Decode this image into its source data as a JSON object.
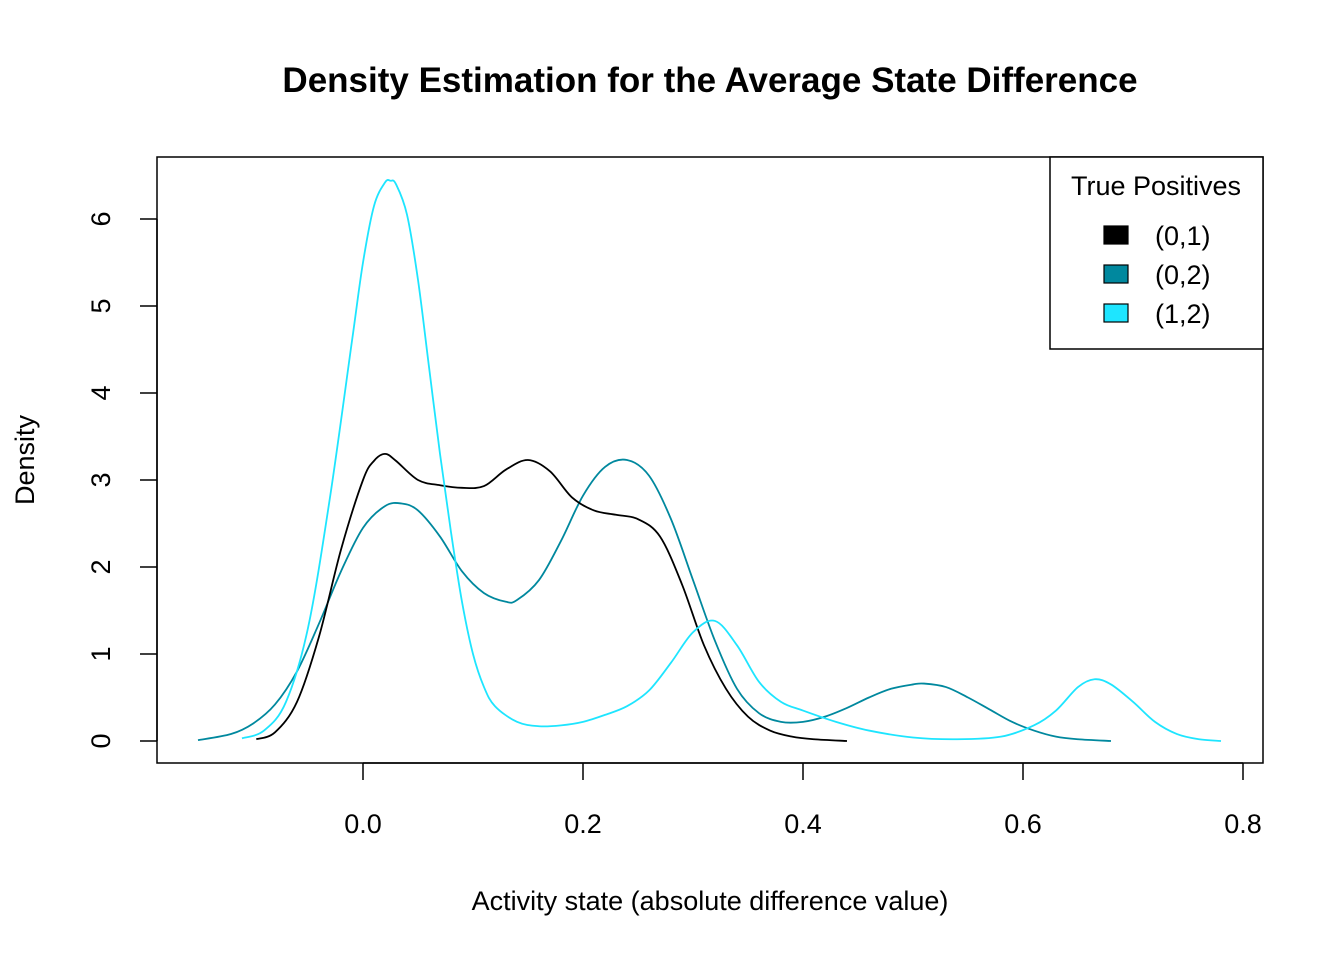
{
  "chart_data": {
    "type": "line",
    "title": "Density Estimation for the Average State Difference",
    "xlabel": "Activity state (absolute difference value)",
    "ylabel": "Density",
    "xlim": [
      -0.15,
      0.78
    ],
    "ylim": [
      0,
      6.5
    ],
    "x_ticks": [
      0.0,
      0.2,
      0.4,
      0.6,
      0.8
    ],
    "x_tick_labels": [
      "0.0",
      "0.2",
      "0.4",
      "0.6",
      "0.8"
    ],
    "y_ticks": [
      0,
      1,
      2,
      3,
      4,
      5,
      6
    ],
    "y_tick_labels": [
      "0",
      "1",
      "2",
      "3",
      "4",
      "5",
      "6"
    ],
    "grid": false,
    "legend": {
      "title": "True Positives",
      "position": "top-right"
    },
    "series": [
      {
        "name": "(0,1)",
        "color": "#000000",
        "x": [
          -0.097,
          -0.08,
          -0.06,
          -0.04,
          -0.02,
          0.0,
          0.01,
          0.02,
          0.03,
          0.05,
          0.07,
          0.09,
          0.11,
          0.13,
          0.15,
          0.17,
          0.19,
          0.21,
          0.23,
          0.25,
          0.27,
          0.29,
          0.31,
          0.33,
          0.35,
          0.37,
          0.39,
          0.41,
          0.44
        ],
        "y": [
          0.02,
          0.1,
          0.45,
          1.2,
          2.2,
          3.0,
          3.22,
          3.3,
          3.22,
          3.0,
          2.94,
          2.91,
          2.93,
          3.12,
          3.23,
          3.1,
          2.8,
          2.65,
          2.6,
          2.55,
          2.35,
          1.8,
          1.1,
          0.6,
          0.28,
          0.12,
          0.05,
          0.02,
          0.0
        ]
      },
      {
        "name": "(0,2)",
        "color": "#00889E",
        "x": [
          -0.15,
          -0.12,
          -0.1,
          -0.08,
          -0.06,
          -0.04,
          -0.02,
          0.0,
          0.02,
          0.035,
          0.05,
          0.07,
          0.09,
          0.11,
          0.13,
          0.14,
          0.16,
          0.18,
          0.2,
          0.22,
          0.24,
          0.26,
          0.28,
          0.3,
          0.32,
          0.34,
          0.36,
          0.38,
          0.4,
          0.42,
          0.44,
          0.46,
          0.48,
          0.5,
          0.51,
          0.53,
          0.55,
          0.57,
          0.59,
          0.61,
          0.63,
          0.65,
          0.68
        ],
        "y": [
          0.01,
          0.08,
          0.2,
          0.42,
          0.8,
          1.35,
          1.95,
          2.45,
          2.7,
          2.73,
          2.65,
          2.35,
          1.95,
          1.7,
          1.6,
          1.62,
          1.85,
          2.3,
          2.82,
          3.15,
          3.23,
          3.05,
          2.55,
          1.85,
          1.15,
          0.6,
          0.32,
          0.22,
          0.22,
          0.28,
          0.38,
          0.5,
          0.6,
          0.65,
          0.66,
          0.62,
          0.5,
          0.36,
          0.22,
          0.12,
          0.05,
          0.02,
          0.0
        ]
      },
      {
        "name": "(1,2)",
        "color": "#1EE5FF",
        "x": [
          -0.11,
          -0.09,
          -0.07,
          -0.05,
          -0.03,
          -0.01,
          0.0,
          0.01,
          0.02,
          0.025,
          0.03,
          0.04,
          0.05,
          0.06,
          0.07,
          0.08,
          0.09,
          0.1,
          0.11,
          0.12,
          0.14,
          0.16,
          0.18,
          0.2,
          0.22,
          0.24,
          0.26,
          0.28,
          0.3,
          0.32,
          0.34,
          0.36,
          0.38,
          0.4,
          0.43,
          0.46,
          0.5,
          0.54,
          0.58,
          0.61,
          0.63,
          0.65,
          0.665,
          0.68,
          0.7,
          0.72,
          0.74,
          0.76,
          0.78
        ],
        "y": [
          0.03,
          0.12,
          0.45,
          1.3,
          2.8,
          4.6,
          5.5,
          6.15,
          6.42,
          6.44,
          6.4,
          6.05,
          5.3,
          4.3,
          3.3,
          2.4,
          1.6,
          1.0,
          0.62,
          0.4,
          0.22,
          0.17,
          0.18,
          0.22,
          0.3,
          0.4,
          0.58,
          0.9,
          1.25,
          1.38,
          1.1,
          0.68,
          0.45,
          0.35,
          0.22,
          0.12,
          0.04,
          0.02,
          0.05,
          0.18,
          0.35,
          0.62,
          0.71,
          0.65,
          0.45,
          0.22,
          0.08,
          0.02,
          0.0
        ]
      }
    ]
  }
}
